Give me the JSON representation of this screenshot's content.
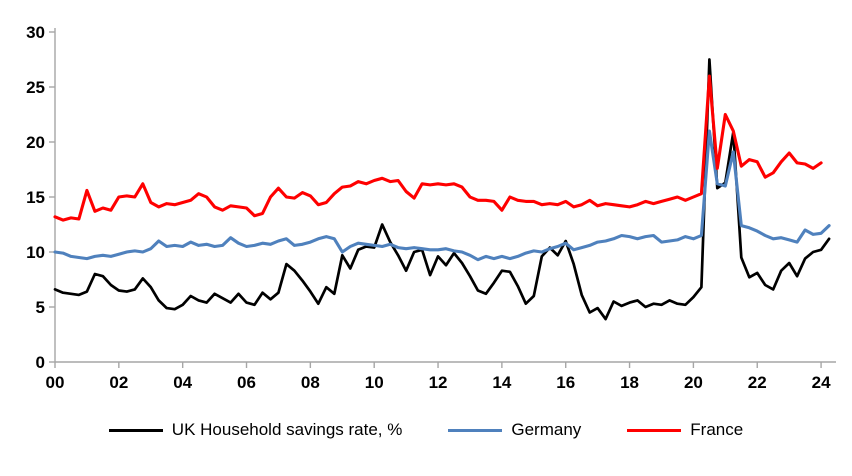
{
  "chart_data": {
    "type": "line",
    "title": "",
    "xlabel": "",
    "ylabel": "",
    "x_start_year": 2000,
    "x_interval_years": 0.25,
    "xlim_years": [
      2000,
      2024.5
    ],
    "ylim": [
      0,
      30
    ],
    "y_ticks": [
      0,
      5,
      10,
      15,
      20,
      25,
      30
    ],
    "x_tick_labels": [
      "00",
      "02",
      "04",
      "06",
      "08",
      "10",
      "12",
      "14",
      "16",
      "18",
      "20",
      "22",
      "24"
    ],
    "x_tick_years": [
      2000,
      2002,
      2004,
      2006,
      2008,
      2010,
      2012,
      2014,
      2016,
      2018,
      2020,
      2022,
      2024
    ],
    "grid": false,
    "legend_position": "bottom",
    "axis_color": "#a6a6a6",
    "series": [
      {
        "key": "uk",
        "name": "UK Household savings rate, %",
        "color": "#000000",
        "values": [
          6.6,
          6.3,
          6.2,
          6.1,
          6.4,
          8.0,
          7.8,
          7.0,
          6.5,
          6.4,
          6.6,
          7.6,
          6.8,
          5.6,
          4.9,
          4.8,
          5.2,
          6.0,
          5.6,
          5.4,
          6.2,
          5.8,
          5.4,
          6.2,
          5.4,
          5.2,
          6.3,
          5.7,
          6.3,
          8.9,
          8.3,
          7.4,
          6.4,
          5.3,
          6.8,
          6.2,
          9.7,
          8.5,
          10.2,
          10.5,
          10.4,
          12.5,
          10.9,
          9.7,
          8.3,
          10.0,
          10.2,
          7.9,
          9.6,
          8.8,
          9.9,
          9.0,
          7.8,
          6.5,
          6.2,
          7.2,
          8.3,
          8.2,
          6.9,
          5.3,
          6.0,
          9.6,
          10.4,
          9.7,
          11.0,
          8.9,
          6.1,
          4.5,
          4.9,
          3.9,
          5.5,
          5.1,
          5.4,
          5.6,
          5.0,
          5.3,
          5.2,
          5.6,
          5.3,
          5.2,
          5.9,
          6.8,
          27.5,
          15.8,
          16.3,
          20.9,
          9.5,
          7.7,
          8.1,
          7.0,
          6.6,
          8.3,
          9.0,
          7.8,
          9.4,
          10.0,
          10.2,
          11.2
        ]
      },
      {
        "key": "germany",
        "name": "Germany",
        "color": "#4f81bd",
        "values": [
          10.0,
          9.9,
          9.6,
          9.5,
          9.4,
          9.6,
          9.7,
          9.6,
          9.8,
          10.0,
          10.1,
          10.0,
          10.3,
          11.0,
          10.5,
          10.6,
          10.5,
          10.9,
          10.6,
          10.7,
          10.5,
          10.6,
          11.3,
          10.8,
          10.5,
          10.6,
          10.8,
          10.7,
          11.0,
          11.2,
          10.6,
          10.7,
          10.9,
          11.2,
          11.4,
          11.2,
          10.0,
          10.5,
          10.8,
          10.7,
          10.6,
          10.5,
          10.7,
          10.4,
          10.3,
          10.4,
          10.3,
          10.2,
          10.2,
          10.3,
          10.1,
          10.0,
          9.7,
          9.3,
          9.6,
          9.4,
          9.6,
          9.4,
          9.6,
          9.9,
          10.1,
          10.0,
          10.3,
          10.5,
          10.8,
          10.2,
          10.4,
          10.6,
          10.9,
          11.0,
          11.2,
          11.5,
          11.4,
          11.2,
          11.4,
          11.5,
          10.9,
          11.0,
          11.1,
          11.4,
          11.2,
          11.5,
          21.0,
          16.2,
          16.0,
          19.1,
          12.4,
          12.2,
          11.9,
          11.5,
          11.2,
          11.3,
          11.1,
          10.9,
          12.0,
          11.6,
          11.7,
          12.4
        ]
      },
      {
        "key": "france",
        "name": "France",
        "color": "#ff0000",
        "values": [
          13.2,
          12.9,
          13.1,
          13.0,
          15.6,
          13.7,
          14.0,
          13.8,
          15.0,
          15.1,
          15.0,
          16.2,
          14.5,
          14.1,
          14.4,
          14.3,
          14.5,
          14.7,
          15.3,
          15.0,
          14.1,
          13.8,
          14.2,
          14.1,
          14.0,
          13.3,
          13.5,
          15.0,
          15.8,
          15.0,
          14.9,
          15.4,
          15.1,
          14.3,
          14.5,
          15.3,
          15.9,
          16.0,
          16.4,
          16.2,
          16.5,
          16.7,
          16.4,
          16.5,
          15.5,
          14.9,
          16.2,
          16.1,
          16.2,
          16.1,
          16.2,
          15.9,
          15.0,
          14.7,
          14.7,
          14.6,
          13.8,
          15.0,
          14.7,
          14.6,
          14.6,
          14.3,
          14.4,
          14.3,
          14.6,
          14.1,
          14.3,
          14.7,
          14.2,
          14.4,
          14.3,
          14.2,
          14.1,
          14.3,
          14.6,
          14.4,
          14.6,
          14.8,
          15.0,
          14.7,
          15.0,
          15.3,
          26.0,
          17.6,
          22.5,
          21.0,
          17.8,
          18.4,
          18.2,
          16.8,
          17.2,
          18.2,
          19.0,
          18.1,
          18.0,
          17.6,
          18.1
        ]
      }
    ]
  },
  "legend": {
    "items": [
      {
        "label": "UK Household savings rate, %"
      },
      {
        "label": "Germany"
      },
      {
        "label": "France"
      }
    ]
  }
}
